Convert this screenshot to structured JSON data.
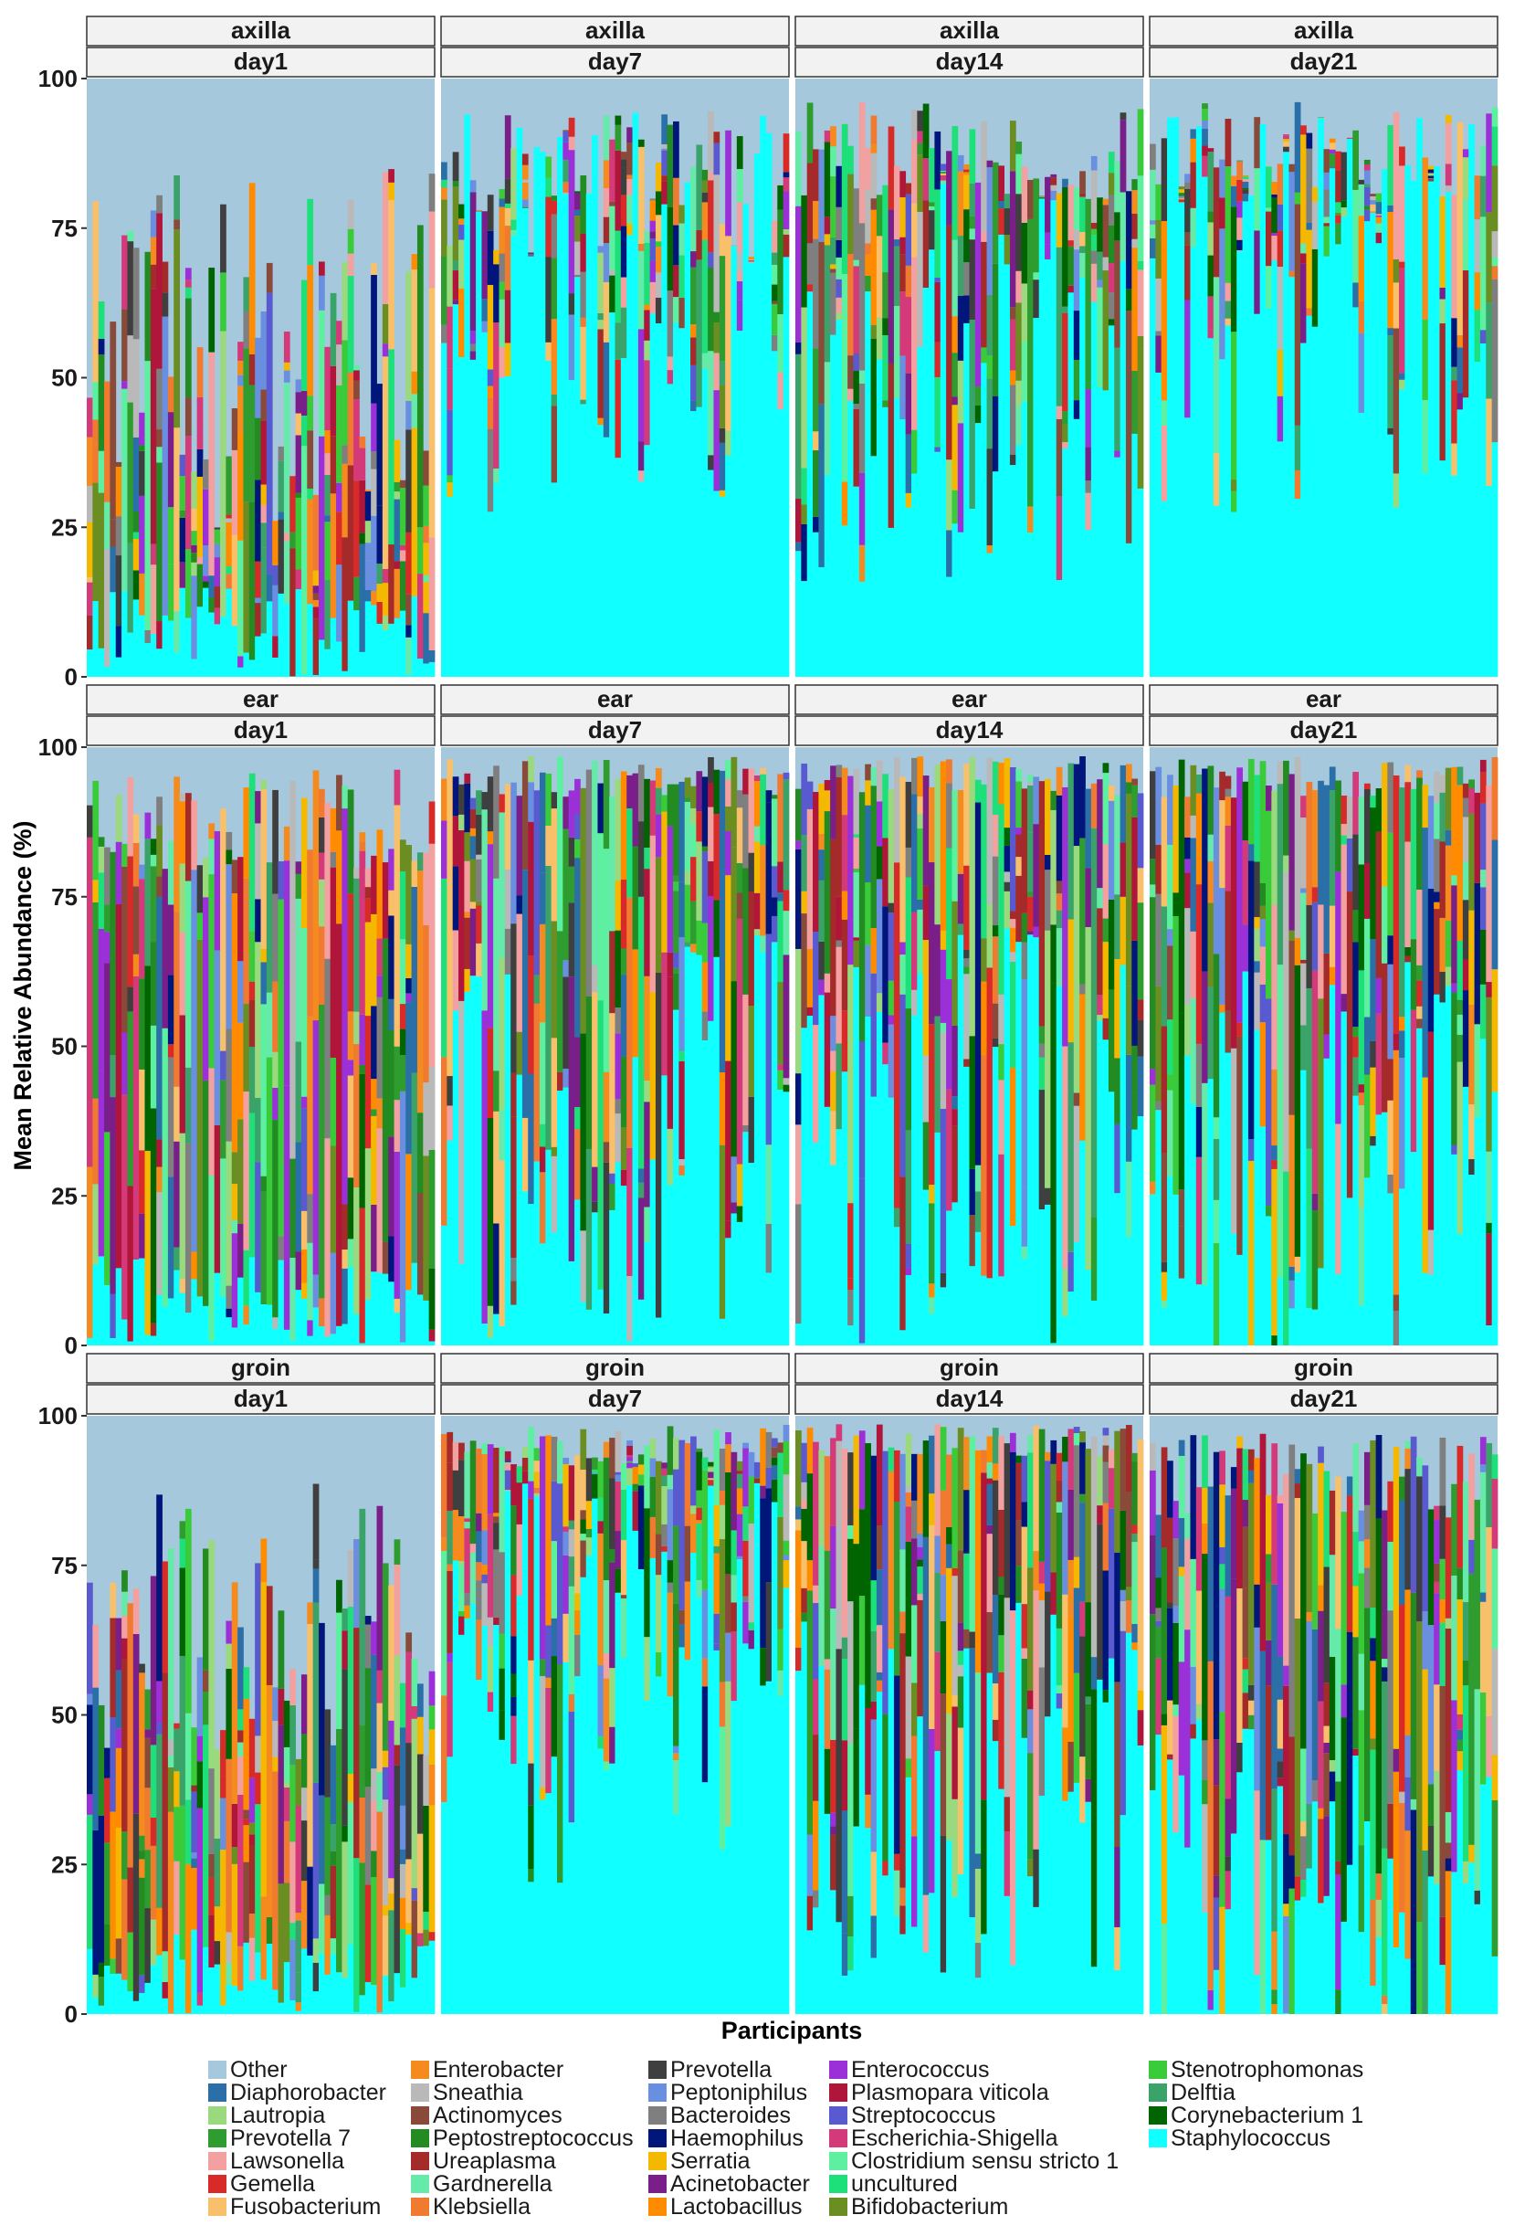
{
  "chart_data": {
    "type": "bar",
    "stacked": true,
    "facet_rows": [
      "axilla",
      "ear",
      "groin"
    ],
    "facet_cols": [
      "day1",
      "day7",
      "day14",
      "day21"
    ],
    "ylabel": "Mean Relative Abundance (%)",
    "xlabel": "Participants",
    "ylim": [
      0,
      100
    ],
    "yticks": [
      0,
      25,
      50,
      75,
      100
    ],
    "legend_position": "bottom",
    "series": [
      {
        "name": "Other",
        "color": "#a6c8dc"
      },
      {
        "name": "Diaphorobacter",
        "color": "#2a6fa8"
      },
      {
        "name": "Lautropia",
        "color": "#9bd97f"
      },
      {
        "name": "Prevotella 7",
        "color": "#2e9c2e"
      },
      {
        "name": "Lawsonella",
        "color": "#f2a0a0"
      },
      {
        "name": "Gemella",
        "color": "#d92a2a"
      },
      {
        "name": "Fusobacterium",
        "color": "#f9c06b"
      },
      {
        "name": "Enterobacter",
        "color": "#f58a1f"
      },
      {
        "name": "Sneathia",
        "color": "#b9b9b9"
      },
      {
        "name": "Actinomyces",
        "color": "#8a4a3a"
      },
      {
        "name": "Peptostreptococcus",
        "color": "#228b22"
      },
      {
        "name": "Ureaplasma",
        "color": "#a52a2a"
      },
      {
        "name": "Gardnerella",
        "color": "#66eaaa"
      },
      {
        "name": "Klebsiella",
        "color": "#f07a30"
      },
      {
        "name": "Prevotella",
        "color": "#3f3f3f"
      },
      {
        "name": "Peptoniphilus",
        "color": "#6a8fe0"
      },
      {
        "name": "Bacteroides",
        "color": "#7f7f7f"
      },
      {
        "name": "Haemophilus",
        "color": "#00167a"
      },
      {
        "name": "Serratia",
        "color": "#f5b800"
      },
      {
        "name": "Acinetobacter",
        "color": "#7a1f8a"
      },
      {
        "name": "Lactobacillus",
        "color": "#ff8c00"
      },
      {
        "name": "Enterococcus",
        "color": "#9b30d9"
      },
      {
        "name": "Plasmopara viticola",
        "color": "#b0163a"
      },
      {
        "name": "Streptococcus",
        "color": "#5a5ad0"
      },
      {
        "name": "Escherichia-Shigella",
        "color": "#d43a7a"
      },
      {
        "name": "Clostridium sensu stricto 1",
        "color": "#5cf0a0"
      },
      {
        "name": "uncultured",
        "color": "#1ee07a"
      },
      {
        "name": "Bifidobacterium",
        "color": "#6b8e23"
      },
      {
        "name": "Stenotrophomonas",
        "color": "#3acb3a"
      },
      {
        "name": "Delftia",
        "color": "#3aa36a"
      },
      {
        "name": "Corynebacterium 1",
        "color": "#006400"
      },
      {
        "name": "Staphylococcus",
        "color": "#10ffff"
      }
    ],
    "panels": [
      {
        "row": "axilla",
        "col": "day1",
        "n_participants": 60,
        "mean_staphylococcus": 6,
        "mean_other": 45
      },
      {
        "row": "axilla",
        "col": "day7",
        "n_participants": 60,
        "mean_staphylococcus": 62,
        "mean_other": 18
      },
      {
        "row": "axilla",
        "col": "day14",
        "n_participants": 60,
        "mean_staphylococcus": 48,
        "mean_other": 12
      },
      {
        "row": "axilla",
        "col": "day21",
        "n_participants": 60,
        "mean_staphylococcus": 60,
        "mean_other": 12
      },
      {
        "row": "ear",
        "col": "day1",
        "n_participants": 60,
        "mean_staphylococcus": 5,
        "mean_other": 12
      },
      {
        "row": "ear",
        "col": "day7",
        "n_participants": 60,
        "mean_staphylococcus": 35,
        "mean_other": 5
      },
      {
        "row": "ear",
        "col": "day14",
        "n_participants": 60,
        "mean_staphylococcus": 35,
        "mean_other": 5
      },
      {
        "row": "ear",
        "col": "day21",
        "n_participants": 60,
        "mean_staphylococcus": 30,
        "mean_other": 5
      },
      {
        "row": "groin",
        "col": "day1",
        "n_participants": 60,
        "mean_staphylococcus": 8,
        "mean_other": 35
      },
      {
        "row": "groin",
        "col": "day7",
        "n_participants": 60,
        "mean_staphylococcus": 55,
        "mean_other": 5
      },
      {
        "row": "groin",
        "col": "day14",
        "n_participants": 60,
        "mean_staphylococcus": 40,
        "mean_other": 4
      },
      {
        "row": "groin",
        "col": "day21",
        "n_participants": 60,
        "mean_staphylococcus": 15,
        "mean_other": 10
      }
    ]
  }
}
